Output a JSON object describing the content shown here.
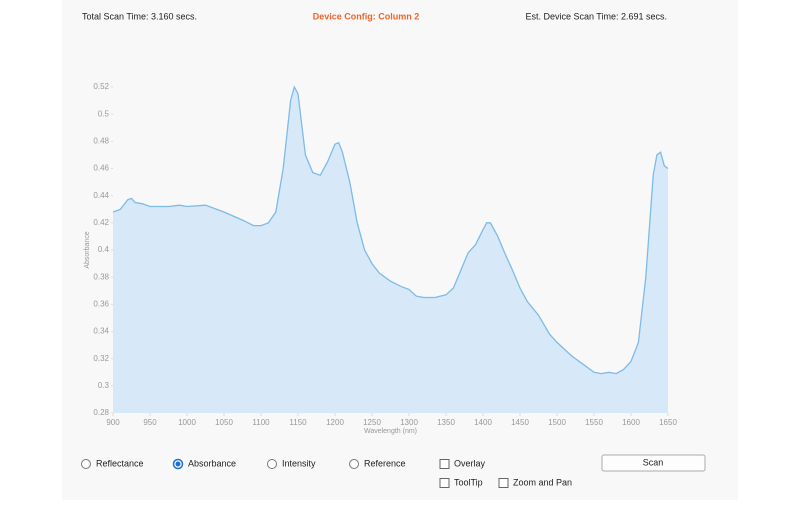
{
  "header": {
    "left": "Total Scan Time: 3.160 secs.",
    "center": "Device Config: Column 2",
    "right": "Est. Device Scan Time: 2.691 secs."
  },
  "chart_data": {
    "type": "area",
    "xlabel": "Wavelength (nm)",
    "ylabel": "Absorbance",
    "x": [
      900,
      910,
      920,
      925,
      930,
      940,
      950,
      975,
      990,
      1000,
      1025,
      1050,
      1075,
      1090,
      1100,
      1110,
      1120,
      1130,
      1140,
      1145,
      1150,
      1160,
      1170,
      1180,
      1190,
      1200,
      1205,
      1210,
      1220,
      1230,
      1240,
      1250,
      1260,
      1275,
      1290,
      1300,
      1310,
      1320,
      1335,
      1350,
      1360,
      1370,
      1380,
      1390,
      1400,
      1405,
      1410,
      1420,
      1430,
      1440,
      1450,
      1460,
      1475,
      1490,
      1500,
      1520,
      1540,
      1550,
      1560,
      1570,
      1580,
      1590,
      1600,
      1610,
      1620,
      1630,
      1635,
      1640,
      1645,
      1650
    ],
    "series": [
      {
        "name": "Absorbance",
        "color": "#7dbbe8",
        "fill": "#d7e8f8",
        "values": [
          0.428,
          0.43,
          0.437,
          0.438,
          0.435,
          0.434,
          0.432,
          0.432,
          0.433,
          0.432,
          0.433,
          0.428,
          0.422,
          0.418,
          0.418,
          0.42,
          0.428,
          0.46,
          0.51,
          0.52,
          0.515,
          0.47,
          0.457,
          0.455,
          0.465,
          0.478,
          0.479,
          0.472,
          0.45,
          0.42,
          0.4,
          0.39,
          0.383,
          0.377,
          0.373,
          0.371,
          0.366,
          0.365,
          0.365,
          0.367,
          0.372,
          0.385,
          0.398,
          0.404,
          0.415,
          0.42,
          0.42,
          0.41,
          0.397,
          0.385,
          0.372,
          0.362,
          0.352,
          0.338,
          0.332,
          0.322,
          0.314,
          0.31,
          0.309,
          0.31,
          0.309,
          0.312,
          0.318,
          0.332,
          0.38,
          0.455,
          0.47,
          0.472,
          0.462,
          0.46
        ]
      }
    ],
    "xlim": [
      900,
      1650
    ],
    "xticks": [
      900,
      950,
      1000,
      1050,
      1100,
      1150,
      1200,
      1250,
      1300,
      1350,
      1400,
      1450,
      1500,
      1550,
      1600,
      1650
    ],
    "ylim": [
      0.28,
      0.52
    ],
    "yticks": [
      0.28,
      0.3,
      0.32,
      0.34,
      0.36,
      0.38,
      0.4,
      0.42,
      0.44,
      0.46,
      0.48,
      0.5,
      0.52
    ],
    "grid": false
  },
  "controls": {
    "radios": [
      {
        "label": "Reflectance",
        "checked": false
      },
      {
        "label": "Absorbance",
        "checked": true
      },
      {
        "label": "Intensity",
        "checked": false
      },
      {
        "label": "Reference",
        "checked": false
      }
    ],
    "checkboxes": [
      {
        "label": "Overlay",
        "checked": false
      },
      {
        "label": "ToolTip",
        "checked": false
      },
      {
        "label": "Zoom and Pan",
        "checked": false
      }
    ],
    "button": "Scan"
  }
}
